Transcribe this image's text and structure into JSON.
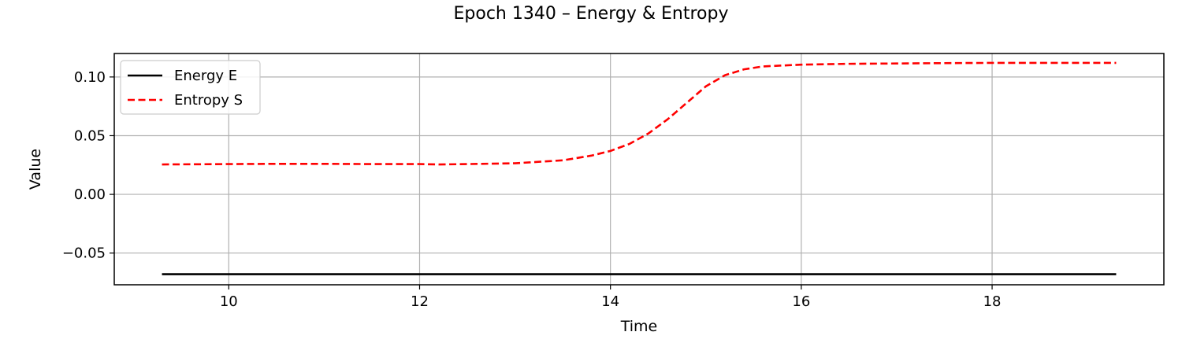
{
  "chart_data": {
    "type": "line",
    "title": "Epoch 1340 – Energy & Entropy",
    "xlabel": "Time",
    "ylabel": "Value",
    "xlim": [
      8.8,
      19.8
    ],
    "ylim": [
      -0.077,
      0.12
    ],
    "xticks": [
      10,
      12,
      14,
      16,
      18
    ],
    "yticks": [
      -0.05,
      0.0,
      0.05,
      0.1
    ],
    "ytick_labels": [
      "−0.05",
      "0.00",
      "0.05",
      "0.10"
    ],
    "xtick_labels": [
      "10",
      "12",
      "14",
      "16",
      "18"
    ],
    "grid": true,
    "legend_position": "top-left",
    "series": [
      {
        "name": "Energy E",
        "color": "#000000",
        "style": "solid",
        "x": [
          9.3,
          10,
          11,
          12,
          13,
          14,
          15,
          16,
          17,
          18,
          19.3
        ],
        "y": [
          -0.068,
          -0.068,
          -0.068,
          -0.068,
          -0.068,
          -0.068,
          -0.068,
          -0.068,
          -0.068,
          -0.068,
          -0.068
        ]
      },
      {
        "name": "Entropy S",
        "color": "#ff0000",
        "style": "dashed",
        "x": [
          9.3,
          10.0,
          10.5,
          11.0,
          11.5,
          12.0,
          12.2,
          12.5,
          13.0,
          13.5,
          13.8,
          14.0,
          14.2,
          14.4,
          14.6,
          14.8,
          15.0,
          15.2,
          15.4,
          15.6,
          16.0,
          16.5,
          17.0,
          17.5,
          18.0,
          18.5,
          19.0,
          19.3
        ],
        "y": [
          0.0255,
          0.0258,
          0.026,
          0.026,
          0.0258,
          0.0258,
          0.0255,
          0.0258,
          0.0265,
          0.029,
          0.033,
          0.037,
          0.043,
          0.052,
          0.064,
          0.078,
          0.092,
          0.1015,
          0.1065,
          0.109,
          0.1105,
          0.1112,
          0.1115,
          0.1118,
          0.112,
          0.112,
          0.112,
          0.112
        ]
      }
    ]
  }
}
